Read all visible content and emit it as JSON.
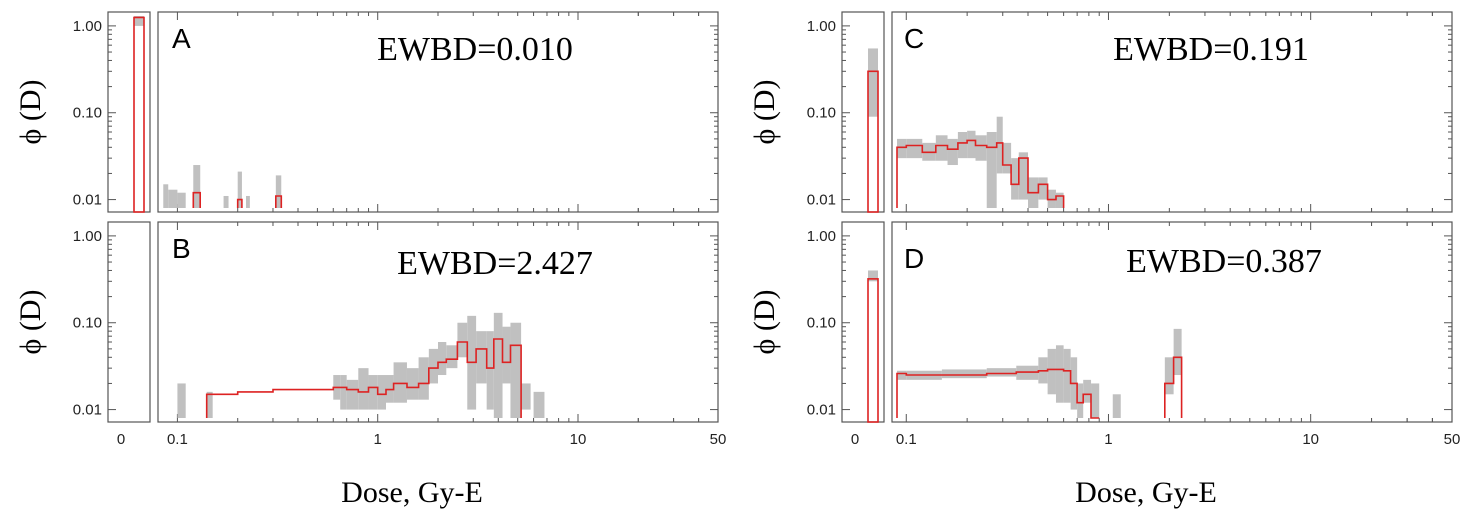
{
  "chart_data": [
    {
      "type": "bar",
      "panel": "A",
      "annotation": "EWBD=0.010",
      "ylabel": "ϕ (D)",
      "xlabel": "",
      "y_scale": "log",
      "ylim": [
        0.008,
        1.3
      ],
      "yticks": [
        "1.00",
        "0.10",
        "0.01"
      ],
      "xlim": [
        0.08,
        50
      ],
      "x_scale": "log",
      "xticks": [],
      "zero_bin": {
        "label": "0",
        "value": 1.25,
        "band": [
          1.0,
          1.3
        ]
      },
      "band": [
        [
          0.085,
          0.09,
          0.008,
          0.015
        ],
        [
          0.09,
          0.1,
          0.008,
          0.013
        ],
        [
          0.1,
          0.11,
          0.008,
          0.012
        ],
        [
          0.12,
          0.13,
          0.008,
          0.025
        ],
        [
          0.17,
          0.18,
          0.008,
          0.011
        ],
        [
          0.2,
          0.21,
          0.008,
          0.021
        ],
        [
          0.22,
          0.23,
          0.008,
          0.011
        ],
        [
          0.31,
          0.33,
          0.008,
          0.019
        ]
      ],
      "series": [
        {
          "steps": [
            [
              0.12,
              0.13,
              0.012
            ],
            [
              0.2,
              0.21,
              0.01
            ],
            [
              0.31,
              0.33,
              0.011
            ]
          ]
        }
      ]
    },
    {
      "type": "bar",
      "panel": "C",
      "annotation": "EWBD=0.191",
      "ylabel": "ϕ (D)",
      "xlabel": "",
      "y_scale": "log",
      "ylim": [
        0.008,
        1.3
      ],
      "yticks": [
        "1.00",
        "0.10",
        "0.01"
      ],
      "xlim": [
        0.085,
        50
      ],
      "x_scale": "log",
      "xticks": [],
      "zero_bin": {
        "label": "0",
        "value": 0.3,
        "band": [
          0.09,
          0.55
        ]
      },
      "band": [
        [
          0.09,
          0.1,
          0.03,
          0.05
        ],
        [
          0.1,
          0.12,
          0.03,
          0.05
        ],
        [
          0.12,
          0.14,
          0.028,
          0.045
        ],
        [
          0.14,
          0.16,
          0.028,
          0.055
        ],
        [
          0.16,
          0.18,
          0.025,
          0.05
        ],
        [
          0.18,
          0.2,
          0.03,
          0.06
        ],
        [
          0.2,
          0.22,
          0.03,
          0.062
        ],
        [
          0.22,
          0.25,
          0.028,
          0.055
        ],
        [
          0.25,
          0.28,
          0.008,
          0.06
        ],
        [
          0.28,
          0.3,
          0.02,
          0.09
        ],
        [
          0.3,
          0.33,
          0.02,
          0.045
        ],
        [
          0.33,
          0.36,
          0.01,
          0.03
        ],
        [
          0.36,
          0.4,
          0.01,
          0.035
        ],
        [
          0.4,
          0.45,
          0.008,
          0.018
        ],
        [
          0.45,
          0.5,
          0.01,
          0.018
        ],
        [
          0.5,
          0.55,
          0.008,
          0.013
        ],
        [
          0.55,
          0.6,
          0.008,
          0.012
        ]
      ],
      "series": [
        {
          "steps": [
            [
              0.09,
              0.1,
              0.04
            ],
            [
              0.1,
              0.12,
              0.042
            ],
            [
              0.12,
              0.14,
              0.035
            ],
            [
              0.14,
              0.16,
              0.042
            ],
            [
              0.16,
              0.18,
              0.038
            ],
            [
              0.18,
              0.2,
              0.045
            ],
            [
              0.2,
              0.22,
              0.048
            ],
            [
              0.22,
              0.25,
              0.042
            ],
            [
              0.25,
              0.28,
              0.04
            ],
            [
              0.28,
              0.3,
              0.045
            ],
            [
              0.3,
              0.33,
              0.025
            ],
            [
              0.33,
              0.36,
              0.015
            ],
            [
              0.36,
              0.4,
              0.03
            ],
            [
              0.4,
              0.45,
              0.012
            ],
            [
              0.45,
              0.5,
              0.015
            ],
            [
              0.5,
              0.55,
              0.01
            ],
            [
              0.55,
              0.6,
              0.011
            ]
          ]
        }
      ]
    },
    {
      "type": "bar",
      "panel": "B",
      "annotation": "EWBD=2.427",
      "ylabel": "ϕ (D)",
      "xlabel": "Dose, Gy-E",
      "y_scale": "log",
      "ylim": [
        0.008,
        1.3
      ],
      "yticks": [
        "1.00",
        "0.10",
        "0.01"
      ],
      "xlim": [
        0.08,
        50
      ],
      "x_scale": "log",
      "xticks": [
        "0.1",
        "1",
        "10",
        "50"
      ],
      "zero_bin": {
        "label": "0",
        "value": null,
        "band": null
      },
      "band": [
        [
          0.1,
          0.11,
          0.008,
          0.02
        ],
        [
          0.14,
          0.15,
          0.008,
          0.016
        ],
        [
          0.6,
          0.65,
          0.013,
          0.025
        ],
        [
          0.65,
          0.7,
          0.01,
          0.025
        ],
        [
          0.7,
          0.8,
          0.01,
          0.022
        ],
        [
          0.8,
          0.9,
          0.01,
          0.03
        ],
        [
          0.9,
          1,
          0.01,
          0.025
        ],
        [
          1,
          1.1,
          0.01,
          0.025
        ],
        [
          1.1,
          1.2,
          0.012,
          0.025
        ],
        [
          1.2,
          1.4,
          0.012,
          0.035
        ],
        [
          1.4,
          1.6,
          0.013,
          0.03
        ],
        [
          1.6,
          1.8,
          0.013,
          0.04
        ],
        [
          1.8,
          2,
          0.02,
          0.05
        ],
        [
          2,
          2.2,
          0.025,
          0.06
        ],
        [
          2.2,
          2.5,
          0.03,
          0.055
        ],
        [
          2.5,
          2.8,
          0.04,
          0.1
        ],
        [
          2.8,
          3.1,
          0.01,
          0.12
        ],
        [
          3.1,
          3.5,
          0.02,
          0.08
        ],
        [
          3.5,
          3.8,
          0.01,
          0.08
        ],
        [
          3.8,
          4.2,
          0.008,
          0.13
        ],
        [
          4.2,
          4.6,
          0.02,
          0.09
        ],
        [
          4.6,
          5.2,
          0.008,
          0.1
        ],
        [
          5.2,
          5.8,
          0.01,
          0.02
        ],
        [
          6,
          6.8,
          0.008,
          0.016
        ]
      ],
      "series": [
        {
          "steps": [
            [
              0.14,
              0.2,
              0.015
            ],
            [
              0.2,
              0.3,
              0.016
            ],
            [
              0.3,
              0.5,
              0.017
            ],
            [
              0.5,
              0.6,
              0.017
            ],
            [
              0.6,
              0.7,
              0.018
            ],
            [
              0.7,
              0.8,
              0.017
            ],
            [
              0.8,
              0.9,
              0.016
            ],
            [
              0.9,
              1,
              0.018
            ],
            [
              1,
              1.1,
              0.015
            ],
            [
              1.1,
              1.2,
              0.017
            ],
            [
              1.2,
              1.4,
              0.02
            ],
            [
              1.4,
              1.6,
              0.018
            ],
            [
              1.6,
              1.8,
              0.02
            ],
            [
              1.8,
              2,
              0.03
            ],
            [
              2,
              2.2,
              0.035
            ],
            [
              2.2,
              2.5,
              0.038
            ],
            [
              2.5,
              2.8,
              0.06
            ],
            [
              2.8,
              3.1,
              0.035
            ],
            [
              3.1,
              3.5,
              0.05
            ],
            [
              3.5,
              3.8,
              0.03
            ],
            [
              3.8,
              4.2,
              0.065
            ],
            [
              4.2,
              4.6,
              0.035
            ],
            [
              4.6,
              5.2,
              0.055
            ]
          ]
        }
      ]
    },
    {
      "type": "bar",
      "panel": "D",
      "annotation": "EWBD=0.387",
      "ylabel": "ϕ (D)",
      "xlabel": "Dose, Gy-E",
      "y_scale": "log",
      "ylim": [
        0.008,
        1.3
      ],
      "yticks": [
        "1.00",
        "0.10",
        "0.01"
      ],
      "xlim": [
        0.085,
        50
      ],
      "x_scale": "log",
      "xticks": [
        "0.1",
        "1",
        "10",
        "50"
      ],
      "zero_bin": {
        "label": "0",
        "value": 0.32,
        "band": [
          0.3,
          0.4
        ]
      },
      "band": [
        [
          0.09,
          0.1,
          0.022,
          0.028
        ],
        [
          0.1,
          0.15,
          0.022,
          0.028
        ],
        [
          0.15,
          0.25,
          0.023,
          0.029
        ],
        [
          0.25,
          0.35,
          0.024,
          0.03
        ],
        [
          0.35,
          0.45,
          0.022,
          0.032
        ],
        [
          0.45,
          0.5,
          0.02,
          0.04
        ],
        [
          0.5,
          0.55,
          0.015,
          0.05
        ],
        [
          0.55,
          0.6,
          0.012,
          0.055
        ],
        [
          0.6,
          0.65,
          0.012,
          0.05
        ],
        [
          0.65,
          0.7,
          0.01,
          0.04
        ],
        [
          0.7,
          0.75,
          0.008,
          0.02
        ],
        [
          0.75,
          0.82,
          0.012,
          0.022
        ],
        [
          0.82,
          0.9,
          0.008,
          0.02
        ],
        [
          1.05,
          1.15,
          0.008,
          0.015
        ],
        [
          1.9,
          2.1,
          0.015,
          0.04
        ],
        [
          2.1,
          2.3,
          0.025,
          0.085
        ]
      ],
      "series": [
        {
          "steps": [
            [
              0.09,
              0.1,
              0.026
            ],
            [
              0.1,
              0.15,
              0.025
            ],
            [
              0.15,
              0.25,
              0.025
            ],
            [
              0.25,
              0.35,
              0.026
            ],
            [
              0.35,
              0.45,
              0.027
            ],
            [
              0.45,
              0.5,
              0.028
            ],
            [
              0.5,
              0.55,
              0.029
            ],
            [
              0.55,
              0.6,
              0.029
            ],
            [
              0.6,
              0.65,
              0.028
            ],
            [
              0.65,
              0.7,
              0.02
            ],
            [
              0.7,
              0.75,
              0.012
            ],
            [
              0.75,
              0.82,
              0.015
            ],
            [
              0.82,
              0.9,
              0.008
            ],
            [
              1.9,
              2.1,
              0.02
            ],
            [
              2.1,
              2.3,
              0.04
            ]
          ]
        }
      ]
    }
  ]
}
